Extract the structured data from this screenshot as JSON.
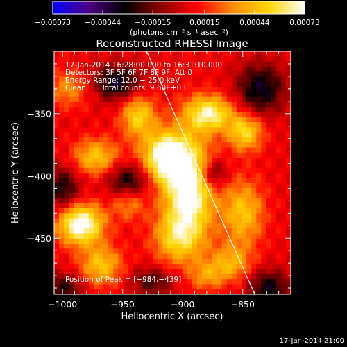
{
  "chart_data": {
    "type": "heatmap",
    "title": "Reconstructed RHESSI Image",
    "xlabel": "Heliocentric X (arcsec)",
    "ylabel": "Heliocentric Y (arcsec)",
    "xlim": [
      -1007,
      -810
    ],
    "ylim": [
      -495,
      -300
    ],
    "x_ticks": [
      -1000,
      -950,
      -900,
      -850
    ],
    "y_ticks": [
      -450,
      -400,
      -350
    ],
    "x_tick_labels": [
      "−1000",
      "−950",
      "−900",
      "−850"
    ],
    "y_tick_labels": [
      "−450",
      "−400",
      "−350"
    ],
    "colorbar": {
      "range": [
        -0.00073,
        0.00073
      ],
      "ticks": [
        -0.00073,
        -0.00044,
        -0.00015,
        0.00015,
        0.00044,
        0.00073
      ],
      "tick_labels": [
        "−0.00073",
        "−0.00044",
        "−0.00015",
        "0.00015",
        "0.00044",
        "0.00073"
      ],
      "colors": [
        "#0000ff",
        "#4b0082",
        "#000000",
        "#8b0000",
        "#ff0000",
        "#ff8c00",
        "#ffd700",
        "#ffffff"
      ],
      "unit_label": "(photons cm⁻² s⁻¹ asec⁻²)"
    },
    "annotations": {
      "time_range": "17-Jan-2014 16:28:00.000 to 16:31:10.000",
      "detectors": "Detectors: 3F 5F 6F 7F 8F 9F, Att 0",
      "energy": "Energy Range: 12.0 − 25.0 keV",
      "method": "Clean",
      "counts": "Total counts: 9.60E+03",
      "peak": "Position of Peak = [−984,−439]"
    },
    "limb_line": {
      "x": [
        -930,
        -840
      ],
      "y": [
        -300,
        -495
      ]
    },
    "sources": [
      {
        "x": -895,
        "y": -410,
        "sx": 14,
        "sy": 28,
        "amp": 1.0
      },
      {
        "x": -915,
        "y": -385,
        "sx": 13,
        "sy": 14,
        "amp": 0.95
      },
      {
        "x": -985,
        "y": -439,
        "sx": 13,
        "sy": 11,
        "amp": 1.0
      },
      {
        "x": -878,
        "y": -350,
        "sx": 14,
        "sy": 10,
        "amp": 0.8
      },
      {
        "x": -848,
        "y": -365,
        "sx": 10,
        "sy": 10,
        "amp": 0.65
      },
      {
        "x": -937,
        "y": -352,
        "sx": 10,
        "sy": 12,
        "amp": 0.6
      },
      {
        "x": -972,
        "y": -385,
        "sx": 13,
        "sy": 10,
        "amp": 0.55
      },
      {
        "x": -968,
        "y": -472,
        "sx": 12,
        "sy": 11,
        "amp": 0.55
      },
      {
        "x": -905,
        "y": -450,
        "sx": 14,
        "sy": 14,
        "amp": 0.5
      },
      {
        "x": -850,
        "y": -430,
        "sx": 12,
        "sy": 18,
        "amp": 0.55
      },
      {
        "x": -995,
        "y": -330,
        "sx": 12,
        "sy": 10,
        "amp": 0.35
      },
      {
        "x": -860,
        "y": -470,
        "sx": 12,
        "sy": 10,
        "amp": 0.45
      },
      {
        "x": -945,
        "y": -420,
        "sx": 10,
        "sy": 10,
        "amp": 0.4
      },
      {
        "x": -880,
        "y": -480,
        "sx": 10,
        "sy": 8,
        "amp": 0.35
      }
    ],
    "negative_regions": [
      {
        "x": -955,
        "y": -325,
        "sx": 14,
        "sy": 10,
        "amp": 0.6
      },
      {
        "x": -835,
        "y": -330,
        "sx": 14,
        "sy": 14,
        "amp": 0.6
      },
      {
        "x": -945,
        "y": -405,
        "sx": 12,
        "sy": 10,
        "amp": 0.6
      },
      {
        "x": -1000,
        "y": -410,
        "sx": 10,
        "sy": 12,
        "amp": 0.5
      },
      {
        "x": -875,
        "y": -398,
        "sx": 8,
        "sy": 8,
        "amp": 0.5
      },
      {
        "x": -828,
        "y": -490,
        "sx": 12,
        "sy": 10,
        "amp": 0.55
      },
      {
        "x": -925,
        "y": -485,
        "sx": 12,
        "sy": 8,
        "amp": 0.4
      },
      {
        "x": -1000,
        "y": -490,
        "sx": 12,
        "sy": 8,
        "amp": 0.45
      }
    ]
  },
  "footer": {
    "timestamp": "17-Jan-2014 21:00"
  }
}
